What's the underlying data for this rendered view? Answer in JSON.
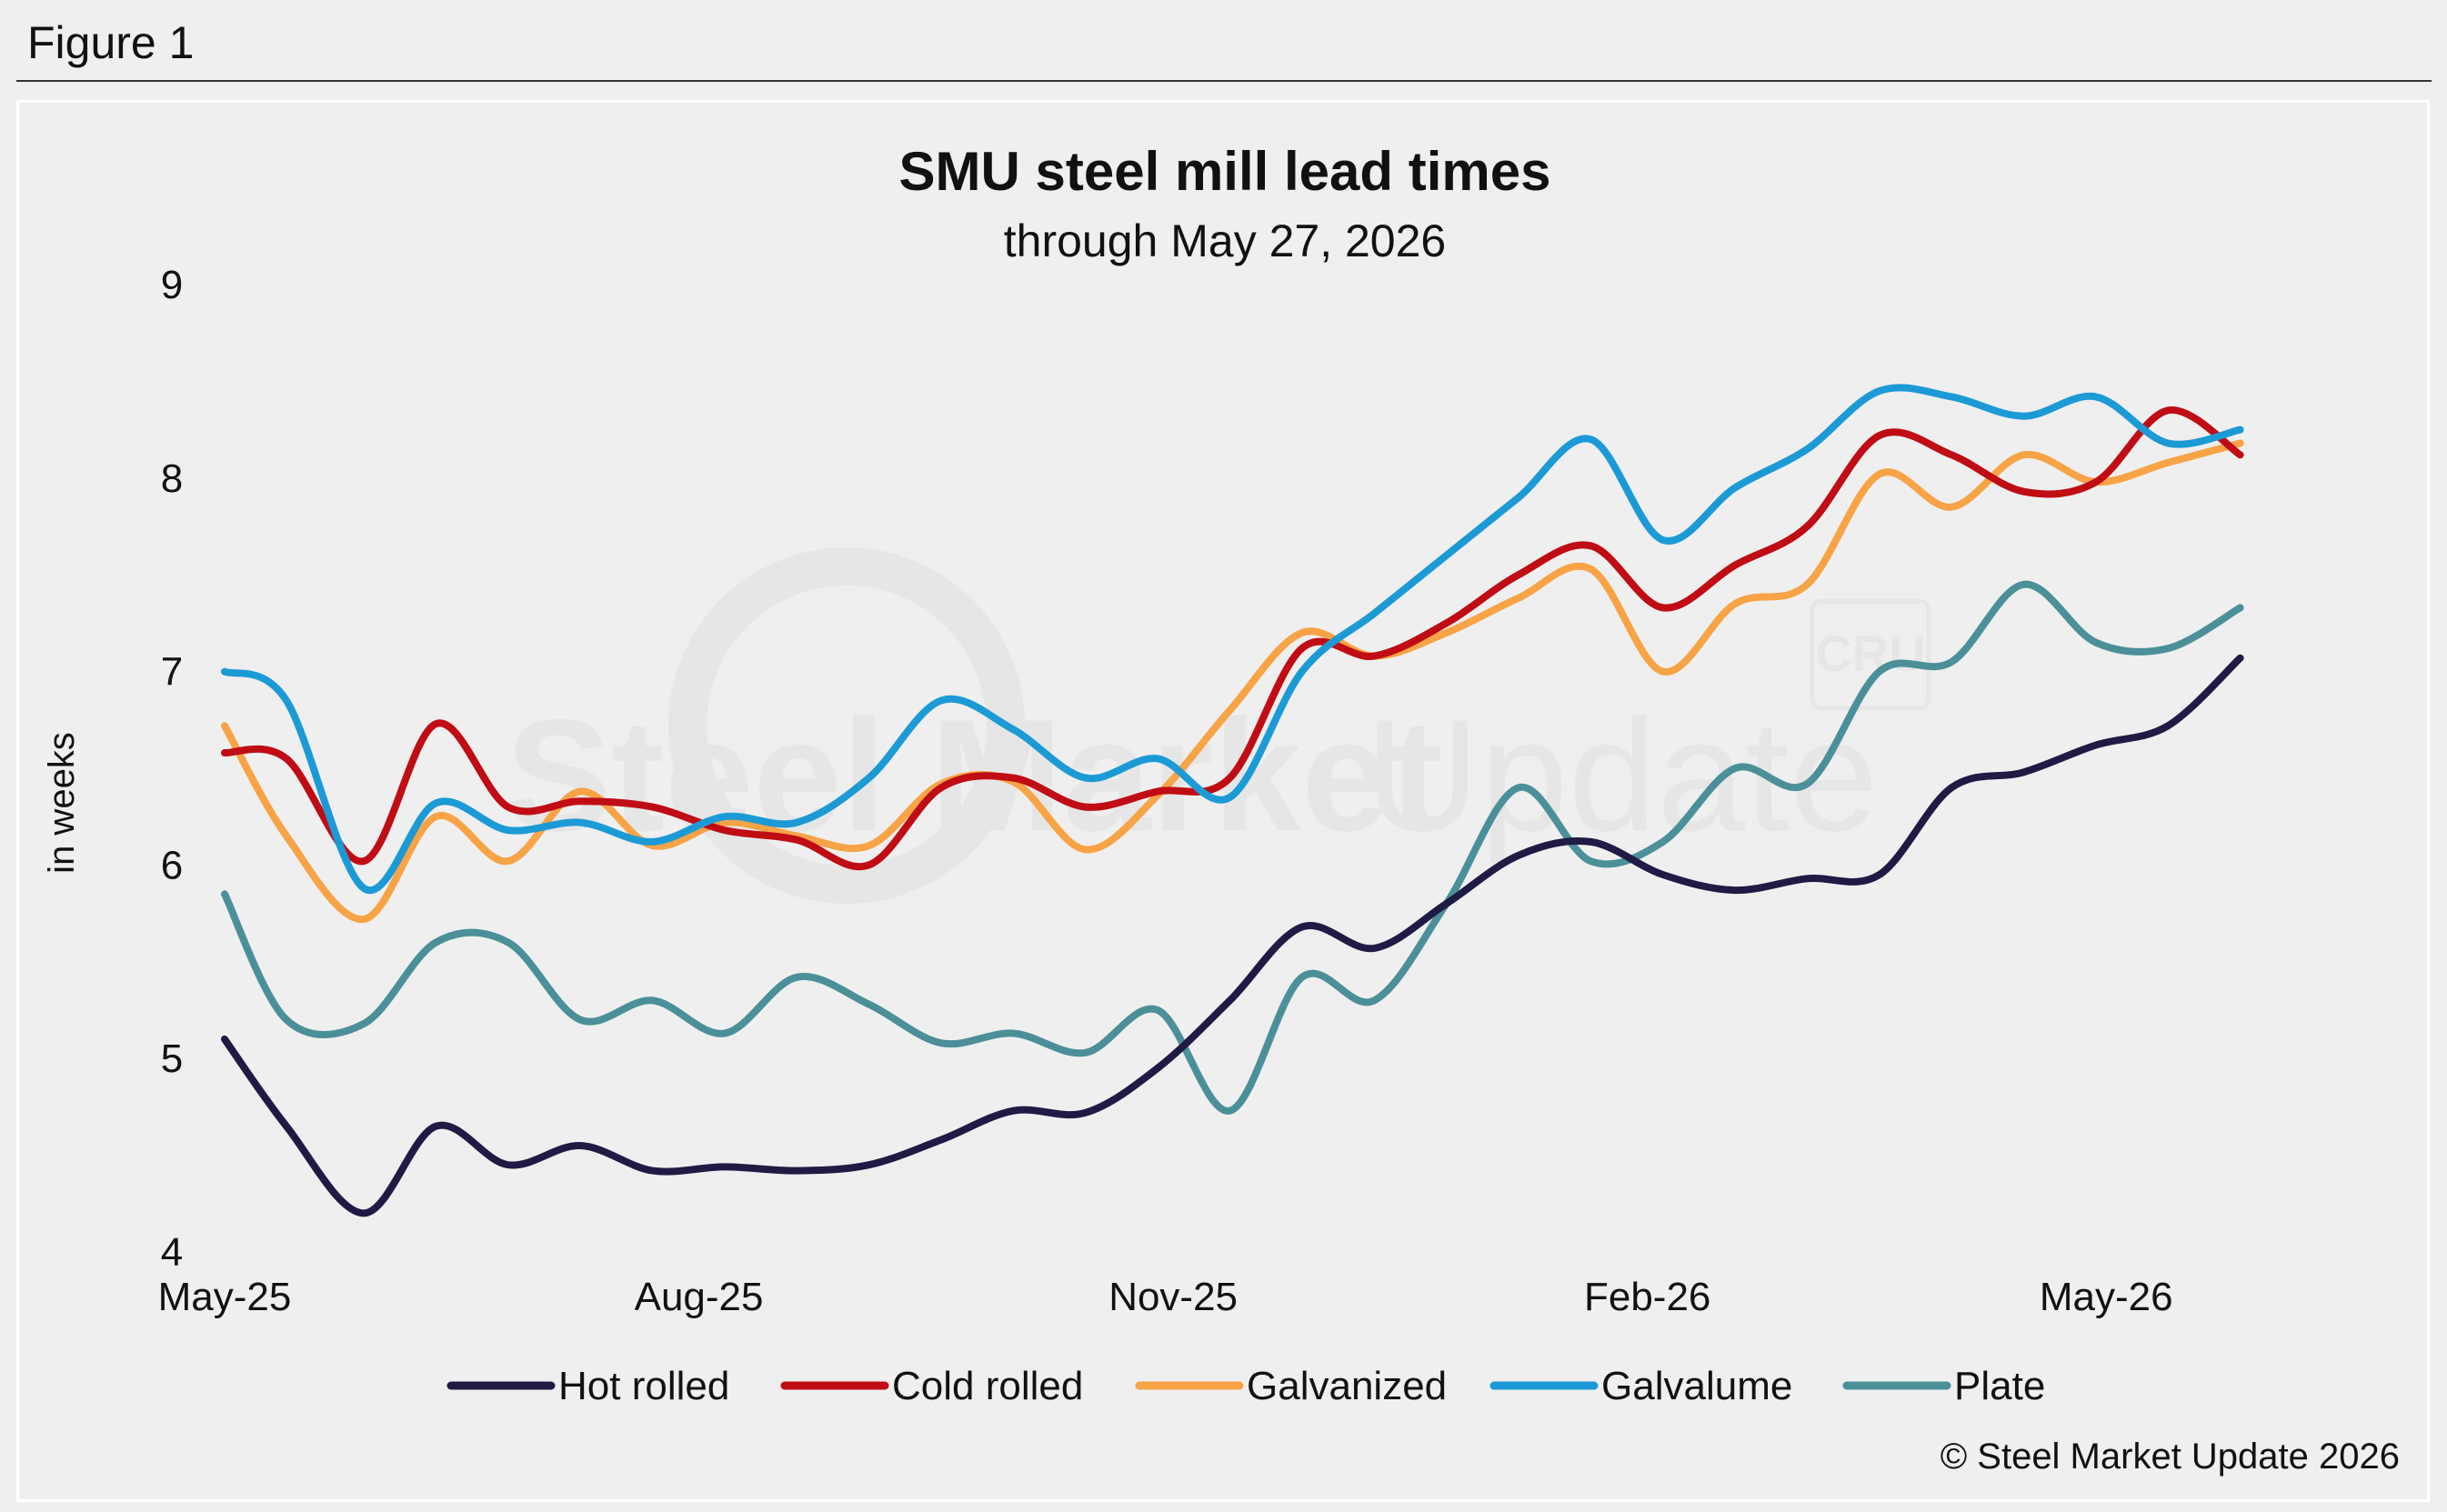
{
  "figure_label": "Figure 1",
  "watermark": {
    "brand_bold": "Steel Market",
    "brand_light": "Update",
    "mark": "CRU"
  },
  "credit": "© Steel Market Update 2026",
  "chart_data": {
    "type": "line",
    "title": "SMU steel mill lead times",
    "subtitle": "through May 27, 2026",
    "xlabel": "",
    "ylabel": "in weeks",
    "ylim": [
      4,
      9
    ],
    "yticks": [
      4,
      5,
      6,
      7,
      8,
      9
    ],
    "x_axis": {
      "start": "2025-05-01",
      "end": "2026-06-10"
    },
    "xticks": [
      {
        "date": "2025-05-01",
        "label": "May-25"
      },
      {
        "date": "2025-08-01",
        "label": "Aug-25"
      },
      {
        "date": "2025-11-01",
        "label": "Nov-25"
      },
      {
        "date": "2026-02-01",
        "label": "Feb-26"
      },
      {
        "date": "2026-05-01",
        "label": "May-26"
      }
    ],
    "grid": false,
    "legend_position": "bottom",
    "series": [
      {
        "name": "Hot rolled",
        "color": "#1f1b45",
        "x": [
          "2025-05-01",
          "2025-05-13",
          "2025-05-28",
          "2025-06-11",
          "2025-06-25",
          "2025-07-09",
          "2025-07-23",
          "2025-08-06",
          "2025-08-20",
          "2025-09-03",
          "2025-09-17",
          "2025-10-01",
          "2025-10-15",
          "2025-10-29",
          "2025-11-12",
          "2025-11-26",
          "2025-12-10",
          "2025-12-24",
          "2026-01-07",
          "2026-01-21",
          "2026-02-04",
          "2026-02-18",
          "2026-03-04",
          "2026-03-18",
          "2026-04-01",
          "2026-04-15",
          "2026-04-29",
          "2026-05-13",
          "2026-05-27"
        ],
        "y": [
          5.1,
          4.65,
          4.2,
          4.65,
          4.45,
          4.55,
          4.42,
          4.44,
          4.42,
          4.45,
          4.58,
          4.73,
          4.72,
          4.95,
          5.3,
          5.68,
          5.57,
          5.8,
          6.05,
          6.12,
          5.95,
          5.87,
          5.93,
          5.95,
          6.4,
          6.48,
          6.62,
          6.72,
          7.07
        ]
      },
      {
        "name": "Cold rolled",
        "color": "#c00c14",
        "x": [
          "2025-05-01",
          "2025-05-13",
          "2025-05-28",
          "2025-06-11",
          "2025-06-25",
          "2025-07-09",
          "2025-07-23",
          "2025-08-06",
          "2025-08-20",
          "2025-09-03",
          "2025-09-17",
          "2025-10-01",
          "2025-10-15",
          "2025-10-29",
          "2025-11-12",
          "2025-11-26",
          "2025-12-10",
          "2025-12-24",
          "2026-01-07",
          "2026-01-21",
          "2026-02-04",
          "2026-02-18",
          "2026-03-04",
          "2026-03-18",
          "2026-04-01",
          "2026-04-15",
          "2026-04-29",
          "2026-05-13",
          "2026-05-27"
        ],
        "y": [
          6.58,
          6.55,
          6.02,
          6.73,
          6.3,
          6.33,
          6.3,
          6.18,
          6.13,
          6.0,
          6.4,
          6.45,
          6.3,
          6.38,
          6.45,
          7.12,
          7.08,
          7.25,
          7.5,
          7.65,
          7.33,
          7.55,
          7.75,
          8.22,
          8.12,
          7.93,
          7.98,
          8.35,
          8.12
        ]
      },
      {
        "name": "Galvanized",
        "color": "#f7a346",
        "x": [
          "2025-05-01",
          "2025-05-13",
          "2025-05-28",
          "2025-06-11",
          "2025-06-25",
          "2025-07-09",
          "2025-07-23",
          "2025-08-06",
          "2025-08-20",
          "2025-09-03",
          "2025-09-17",
          "2025-10-01",
          "2025-10-15",
          "2025-10-29",
          "2025-11-12",
          "2025-11-26",
          "2025-12-10",
          "2025-12-24",
          "2026-01-07",
          "2026-01-21",
          "2026-02-04",
          "2026-02-18",
          "2026-03-04",
          "2026-03-18",
          "2026-04-01",
          "2026-04-15",
          "2026-04-29",
          "2026-05-13",
          "2026-05-27"
        ],
        "y": [
          6.72,
          6.15,
          5.72,
          6.25,
          6.02,
          6.38,
          6.1,
          6.22,
          6.15,
          6.1,
          6.42,
          6.43,
          6.08,
          6.36,
          6.8,
          7.2,
          7.08,
          7.2,
          7.38,
          7.53,
          7.0,
          7.35,
          7.45,
          8.02,
          7.85,
          8.12,
          7.98,
          8.08,
          8.18
        ]
      },
      {
        "name": "Galvalume",
        "color": "#1c9ad6",
        "x": [
          "2025-05-01",
          "2025-05-13",
          "2025-05-28",
          "2025-06-11",
          "2025-06-25",
          "2025-07-09",
          "2025-07-23",
          "2025-08-06",
          "2025-08-20",
          "2025-09-03",
          "2025-09-17",
          "2025-10-01",
          "2025-10-15",
          "2025-10-29",
          "2025-11-12",
          "2025-11-26",
          "2025-12-10",
          "2025-12-24",
          "2026-01-07",
          "2026-01-21",
          "2026-02-04",
          "2026-02-18",
          "2026-03-04",
          "2026-03-18",
          "2026-04-01",
          "2026-04-15",
          "2026-04-29",
          "2026-05-13",
          "2026-05-27"
        ],
        "y": [
          7.0,
          6.85,
          5.88,
          6.32,
          6.18,
          6.22,
          6.12,
          6.25,
          6.22,
          6.45,
          6.85,
          6.7,
          6.45,
          6.55,
          6.35,
          7.0,
          7.3,
          7.6,
          7.9,
          8.2,
          7.68,
          7.95,
          8.15,
          8.45,
          8.42,
          8.32,
          8.42,
          8.18,
          8.25
        ]
      },
      {
        "name": "Plate",
        "color": "#4b8f99",
        "x": [
          "2025-05-01",
          "2025-05-13",
          "2025-05-28",
          "2025-06-11",
          "2025-06-25",
          "2025-07-09",
          "2025-07-23",
          "2025-08-06",
          "2025-08-20",
          "2025-09-03",
          "2025-09-17",
          "2025-10-01",
          "2025-10-15",
          "2025-10-29",
          "2025-11-12",
          "2025-11-26",
          "2025-12-10",
          "2025-12-24",
          "2026-01-07",
          "2026-01-21",
          "2026-02-04",
          "2026-02-18",
          "2026-03-04",
          "2026-03-18",
          "2026-04-01",
          "2026-04-15",
          "2026-04-29",
          "2026-05-13",
          "2026-05-27"
        ],
        "y": [
          5.85,
          5.2,
          5.18,
          5.6,
          5.6,
          5.2,
          5.3,
          5.13,
          5.42,
          5.28,
          5.08,
          5.13,
          5.03,
          5.25,
          4.73,
          5.42,
          5.3,
          5.8,
          6.4,
          6.02,
          6.12,
          6.5,
          6.42,
          7.0,
          7.05,
          7.45,
          7.15,
          7.12,
          7.33
        ]
      }
    ]
  }
}
